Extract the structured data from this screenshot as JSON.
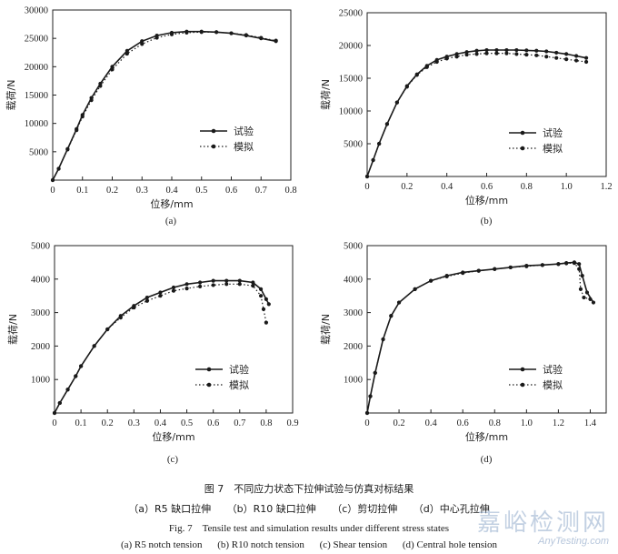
{
  "chart_data": [
    {
      "type": "line",
      "panel_label": "(a)",
      "xlabel": "位移/mm",
      "ylabel": "载荷/N",
      "xlim": [
        0,
        0.8
      ],
      "ylim": [
        0,
        30000
      ],
      "xticks": [
        0,
        0.1,
        0.2,
        0.3,
        0.4,
        0.5,
        0.6,
        0.7,
        0.8
      ],
      "yticks": [
        5000,
        10000,
        15000,
        20000,
        25000,
        30000
      ],
      "xtick_labels": [
        "0",
        "0.1",
        "0.2",
        "0.3",
        "0.4",
        "0.5",
        "0.6",
        "0.7",
        "0.8"
      ],
      "ytick_labels": [
        "5000",
        "10000",
        "15000",
        "20000",
        "25000",
        "30000"
      ],
      "legend_position": "center-right",
      "series": [
        {
          "name": "试验",
          "style": "solid",
          "x": [
            0.0,
            0.02,
            0.05,
            0.08,
            0.1,
            0.13,
            0.16,
            0.2,
            0.25,
            0.3,
            0.35,
            0.4,
            0.45,
            0.5,
            0.55,
            0.6,
            0.65,
            0.7,
            0.75
          ],
          "y": [
            0,
            2000,
            5500,
            9000,
            11500,
            14500,
            17000,
            20000,
            22800,
            24500,
            25500,
            26000,
            26200,
            26200,
            26100,
            25900,
            25500,
            25000,
            24500
          ]
        },
        {
          "name": "模拟",
          "style": "dotted",
          "x": [
            0.0,
            0.02,
            0.05,
            0.08,
            0.1,
            0.13,
            0.16,
            0.2,
            0.25,
            0.3,
            0.35,
            0.4,
            0.45,
            0.5,
            0.55,
            0.6,
            0.65,
            0.7,
            0.75
          ],
          "y": [
            0,
            2000,
            5400,
            8800,
            11200,
            14100,
            16600,
            19500,
            22300,
            24000,
            25100,
            25700,
            26000,
            26100,
            26100,
            25900,
            25600,
            25100,
            24600
          ]
        }
      ]
    },
    {
      "type": "line",
      "panel_label": "(b)",
      "xlabel": "位移/mm",
      "ylabel": "载荷/N",
      "xlim": [
        0,
        1.2
      ],
      "ylim": [
        0,
        25000
      ],
      "xticks": [
        0,
        0.2,
        0.4,
        0.6,
        0.8,
        1.0,
        1.2
      ],
      "yticks": [
        5000,
        10000,
        15000,
        20000,
        25000
      ],
      "xtick_labels": [
        "0",
        "0.2",
        "0.4",
        "0.6",
        "0.8",
        "1.0",
        "1.2"
      ],
      "ytick_labels": [
        "5000",
        "10000",
        "15000",
        "20000",
        "25000"
      ],
      "legend_position": "lower-right",
      "series": [
        {
          "name": "试验",
          "style": "solid",
          "x": [
            0.0,
            0.03,
            0.06,
            0.1,
            0.15,
            0.2,
            0.25,
            0.3,
            0.35,
            0.4,
            0.45,
            0.5,
            0.55,
            0.6,
            0.65,
            0.7,
            0.75,
            0.8,
            0.85,
            0.9,
            0.95,
            1.0,
            1.05,
            1.1
          ],
          "y": [
            0,
            2500,
            5000,
            8000,
            11300,
            13800,
            15600,
            16900,
            17800,
            18300,
            18700,
            19000,
            19200,
            19300,
            19300,
            19300,
            19300,
            19250,
            19200,
            19100,
            18900,
            18700,
            18400,
            18100
          ]
        },
        {
          "name": "模拟",
          "style": "dotted",
          "x": [
            0.0,
            0.03,
            0.06,
            0.1,
            0.15,
            0.2,
            0.25,
            0.3,
            0.35,
            0.4,
            0.45,
            0.5,
            0.55,
            0.6,
            0.65,
            0.7,
            0.75,
            0.8,
            0.85,
            0.9,
            0.95,
            1.0,
            1.05,
            1.1
          ],
          "y": [
            0,
            2500,
            5000,
            8000,
            11300,
            13700,
            15500,
            16700,
            17500,
            18000,
            18300,
            18600,
            18700,
            18800,
            18800,
            18800,
            18700,
            18600,
            18500,
            18300,
            18100,
            17900,
            17700,
            17500
          ]
        }
      ]
    },
    {
      "type": "line",
      "panel_label": "(c)",
      "xlabel": "位移/mm",
      "ylabel": "载荷/N",
      "xlim": [
        0,
        0.9
      ],
      "ylim": [
        0,
        5000
      ],
      "xticks": [
        0,
        0.1,
        0.2,
        0.3,
        0.4,
        0.5,
        0.6,
        0.7,
        0.8,
        0.9
      ],
      "yticks": [
        1000,
        2000,
        3000,
        4000,
        5000
      ],
      "xtick_labels": [
        "0",
        "0.1",
        "0.2",
        "0.3",
        "0.4",
        "0.5",
        "0.6",
        "0.7",
        "0.8",
        "0.9"
      ],
      "ytick_labels": [
        "1000",
        "2000",
        "3000",
        "4000",
        "5000"
      ],
      "legend_position": "lower-right",
      "series": [
        {
          "name": "试验",
          "style": "solid",
          "x": [
            0.0,
            0.02,
            0.05,
            0.08,
            0.1,
            0.15,
            0.2,
            0.25,
            0.3,
            0.35,
            0.4,
            0.45,
            0.5,
            0.55,
            0.6,
            0.65,
            0.7,
            0.75,
            0.78,
            0.8,
            0.81
          ],
          "y": [
            0,
            300,
            700,
            1100,
            1400,
            2000,
            2500,
            2900,
            3200,
            3450,
            3600,
            3750,
            3850,
            3900,
            3950,
            3950,
            3950,
            3900,
            3700,
            3400,
            3250
          ]
        },
        {
          "name": "模拟",
          "style": "dotted",
          "x": [
            0.0,
            0.02,
            0.05,
            0.08,
            0.1,
            0.15,
            0.2,
            0.25,
            0.3,
            0.35,
            0.4,
            0.45,
            0.5,
            0.55,
            0.6,
            0.65,
            0.7,
            0.75,
            0.78,
            0.79,
            0.8
          ],
          "y": [
            0,
            300,
            700,
            1100,
            1400,
            2000,
            2500,
            2850,
            3150,
            3350,
            3500,
            3650,
            3720,
            3780,
            3820,
            3850,
            3850,
            3800,
            3500,
            3100,
            2700
          ]
        }
      ]
    },
    {
      "type": "line",
      "panel_label": "(d)",
      "xlabel": "位移/mm",
      "ylabel": "载荷/N",
      "xlim": [
        0,
        1.5
      ],
      "ylim": [
        0,
        5000
      ],
      "xticks": [
        0,
        0.2,
        0.4,
        0.6,
        0.8,
        1.0,
        1.2,
        1.4
      ],
      "yticks": [
        1000,
        2000,
        3000,
        4000,
        5000
      ],
      "xtick_labels": [
        "0",
        "0.2",
        "0.4",
        "0.6",
        "0.8",
        "1.0",
        "1.2",
        "1.4"
      ],
      "ytick_labels": [
        "1000",
        "2000",
        "3000",
        "4000",
        "5000"
      ],
      "legend_position": "lower-right",
      "series": [
        {
          "name": "试验",
          "style": "solid",
          "x": [
            0.0,
            0.02,
            0.05,
            0.1,
            0.15,
            0.2,
            0.3,
            0.4,
            0.5,
            0.6,
            0.7,
            0.8,
            0.9,
            1.0,
            1.1,
            1.2,
            1.25,
            1.3,
            1.33,
            1.35,
            1.38,
            1.42
          ],
          "y": [
            0,
            500,
            1200,
            2200,
            2900,
            3300,
            3700,
            3950,
            4100,
            4200,
            4250,
            4300,
            4350,
            4400,
            4420,
            4450,
            4480,
            4500,
            4450,
            4100,
            3600,
            3300
          ]
        },
        {
          "name": "模拟",
          "style": "dotted",
          "x": [
            0.0,
            0.02,
            0.05,
            0.1,
            0.15,
            0.2,
            0.3,
            0.4,
            0.5,
            0.6,
            0.7,
            0.8,
            0.9,
            1.0,
            1.1,
            1.2,
            1.25,
            1.3,
            1.33,
            1.34,
            1.36,
            1.4
          ],
          "y": [
            0,
            500,
            1200,
            2200,
            2900,
            3300,
            3700,
            3950,
            4080,
            4180,
            4250,
            4300,
            4350,
            4380,
            4420,
            4450,
            4470,
            4480,
            4300,
            3700,
            3450,
            3400
          ]
        }
      ]
    }
  ],
  "caption": {
    "zh_title": "图 7　不同应力状态下拉伸试验与仿真对标结果",
    "zh_sub": [
      "（a）R5 缺口拉伸",
      "（b）R10 缺口拉伸",
      "（c）剪切拉伸",
      "（d）中心孔拉伸"
    ],
    "en_title": "Fig. 7　Tensile test and simulation results under different stress states",
    "en_sub": [
      "(a) R5 notch tension",
      "(b) R10 notch tension",
      "(c) Shear tension",
      "(d) Central hole tension"
    ]
  },
  "watermark": {
    "zh": "嘉峪检测网",
    "en": "AnyTesting.com"
  },
  "colors": {
    "line": "#1a1a1a",
    "watermark": "#7896be"
  }
}
